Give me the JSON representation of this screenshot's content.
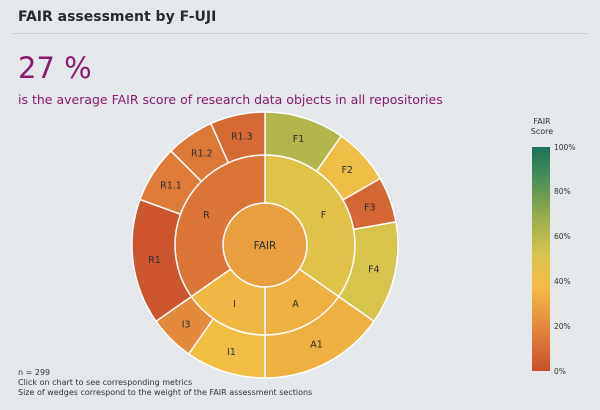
{
  "header": {
    "title": "FAIR assessment by F-UJI",
    "big_number": "27 %",
    "subtitle": "is the average FAIR score of research data objects in all repositories"
  },
  "footnotes": [
    "n = 299",
    "Click on chart to see corresponding metrics",
    "Size of wedges correspond to the weight of the FAIR assessment sections"
  ],
  "legend": {
    "title_lines": [
      "FAIR",
      "Score"
    ],
    "ticks": [
      "100%",
      "80%",
      "60%",
      "40%",
      "20%",
      "0%"
    ]
  },
  "chart_data": {
    "type": "sunburst",
    "center": {
      "label": "FAIR",
      "score": 27
    },
    "inner": [
      {
        "label": "F",
        "start": 0,
        "end": 125,
        "score": 47
      },
      {
        "label": "A",
        "start": 125,
        "end": 180,
        "score": 33
      },
      {
        "label": "I",
        "start": 180,
        "end": 235,
        "score": 36
      },
      {
        "label": "R",
        "start": 235,
        "end": 360,
        "score": 13
      }
    ],
    "outer": [
      {
        "label": "F1",
        "start": 0,
        "end": 35,
        "score": 62
      },
      {
        "label": "F2",
        "start": 35,
        "end": 60,
        "score": 40
      },
      {
        "label": "F3",
        "start": 60,
        "end": 80,
        "score": 8
      },
      {
        "label": "F4",
        "start": 80,
        "end": 125,
        "score": 52
      },
      {
        "label": "A1",
        "start": 125,
        "end": 180,
        "score": 33
      },
      {
        "label": "I1",
        "start": 180,
        "end": 215,
        "score": 38
      },
      {
        "label": "I3",
        "start": 215,
        "end": 235,
        "score": 20
      },
      {
        "label": "R1",
        "start": 235,
        "end": 290,
        "score": 2
      },
      {
        "label": "R1.1",
        "start": 290,
        "end": 315,
        "score": 15
      },
      {
        "label": "R1.2",
        "start": 315,
        "end": 336,
        "score": 14
      },
      {
        "label": "R1.3",
        "start": 336,
        "end": 360,
        "score": 9
      }
    ],
    "colorscale": {
      "min": 0,
      "max": 100,
      "unit": "%"
    }
  }
}
